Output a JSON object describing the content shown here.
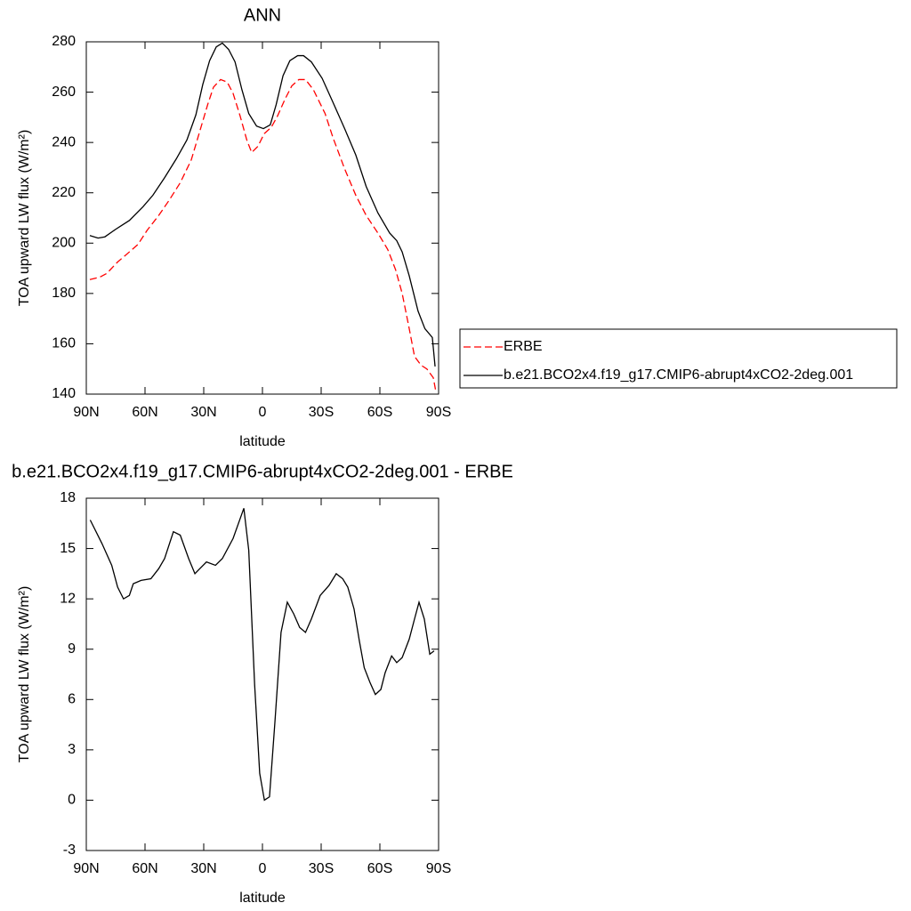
{
  "chart_data": [
    {
      "type": "line",
      "title": "ANN",
      "xlabel": "latitude",
      "ylabel": "TOA upward LW flux (W/m²)",
      "xlim": [
        90,
        -90
      ],
      "ylim": [
        140,
        280
      ],
      "xticks": [
        {
          "value": 90,
          "label": "90N"
        },
        {
          "value": 60,
          "label": "60N"
        },
        {
          "value": 30,
          "label": "30N"
        },
        0,
        {
          "value": -30,
          "label": "30S"
        },
        {
          "value": -60,
          "label": "60S"
        },
        {
          "value": -90,
          "label": "90S"
        }
      ],
      "yticks": [
        140,
        160,
        180,
        200,
        220,
        240,
        260,
        280
      ],
      "series": [
        {
          "name": "ERBE",
          "color": "#ff0000",
          "dashed": true,
          "x": [
            88.2,
            83,
            79.5,
            74,
            68,
            63.6,
            59,
            53,
            47.7,
            42,
            36.4,
            32,
            28,
            25,
            21.4,
            18,
            15,
            11.4,
            8,
            5.5,
            2.3,
            -0.9,
            -4.5,
            -7.7,
            -11.4,
            -15,
            -18.6,
            -22,
            -26,
            -32,
            -36,
            -42,
            -47.7,
            -53,
            -59,
            -64,
            -68,
            -71.4,
            -75,
            -77.7,
            -81,
            -84,
            -87.3,
            -88.6
          ],
          "values": [
            185.5,
            186.5,
            188,
            192.5,
            196.5,
            199.5,
            205,
            211,
            217,
            224,
            233,
            244.5,
            255,
            262,
            265,
            264,
            259.5,
            250.5,
            241,
            236,
            238.5,
            243.5,
            246,
            250.5,
            257,
            262.5,
            265,
            265,
            261,
            251.5,
            242,
            229.5,
            219,
            211,
            204,
            197.5,
            189.5,
            180,
            166,
            155,
            151.5,
            150,
            146.5,
            141
          ]
        },
        {
          "name": "b.e21.BCO2x4.f19_g17.CMIP6-abrupt4xCO2-2deg.001",
          "color": "#000000",
          "dashed": false,
          "x": [
            88.2,
            84,
            80.5,
            75,
            68,
            61,
            56,
            50,
            44,
            38.6,
            34,
            30.5,
            27,
            23.6,
            20.5,
            17.3,
            14,
            10.5,
            7,
            3,
            -0.5,
            -4,
            -7,
            -10.5,
            -14,
            -18,
            -21,
            -25,
            -30.5,
            -36,
            -42,
            -47.7,
            -53,
            -59,
            -65,
            -68.6,
            -71.4,
            -75,
            -79.5,
            -83,
            -86.8,
            -88.2
          ],
          "values": [
            203,
            202,
            202.5,
            205.5,
            209,
            214.5,
            219,
            226,
            233.5,
            241,
            251,
            263,
            272.5,
            278,
            279.5,
            277,
            272,
            261,
            251.5,
            246.5,
            245.5,
            247,
            255,
            266.5,
            272.5,
            274.5,
            274.5,
            272,
            265.5,
            256,
            245.5,
            235,
            222.5,
            212,
            204,
            201,
            196.5,
            187,
            173,
            166,
            162.5,
            151
          ]
        }
      ]
    },
    {
      "type": "line",
      "title": "b.e21.BCO2x4.f19_g17.CMIP6-abrupt4xCO2-2deg.001 - ERBE",
      "xlabel": "latitude",
      "ylabel": "TOA upward LW flux (W/m²)",
      "xlim": [
        90,
        -90
      ],
      "ylim": [
        -3,
        18
      ],
      "xticks": [
        {
          "value": 90,
          "label": "90N"
        },
        {
          "value": 60,
          "label": "60N"
        },
        {
          "value": 30,
          "label": "30N"
        },
        0,
        {
          "value": -30,
          "label": "30S"
        },
        {
          "value": -60,
          "label": "60S"
        },
        {
          "value": -90,
          "label": "90S"
        }
      ],
      "yticks": [
        -3,
        0,
        3,
        6,
        9,
        12,
        15,
        18
      ],
      "series": [
        {
          "color": "#000000",
          "dashed": false,
          "x": [
            88,
            82,
            77,
            74,
            71,
            68,
            66,
            62,
            57,
            53,
            50,
            45.5,
            42,
            37.7,
            34.5,
            32,
            28.6,
            24,
            20.5,
            15,
            9.5,
            7,
            4,
            1.4,
            -1,
            -3.6,
            -6.4,
            -9.5,
            -12.7,
            -16,
            -19,
            -22,
            -25,
            -29.5,
            -34,
            -37.7,
            -41,
            -43.6,
            -46.8,
            -49.5,
            -52,
            -55,
            -57.7,
            -60.5,
            -62.7,
            -66,
            -68.6,
            -71.4,
            -75,
            -77.7,
            -80,
            -82.7,
            -85.5,
            -87.7
          ],
          "values": [
            16.7,
            15.3,
            14.0,
            12.7,
            12.0,
            12.2,
            12.9,
            13.1,
            13.2,
            13.8,
            14.4,
            16.0,
            15.8,
            14.4,
            13.5,
            13.8,
            14.2,
            14.0,
            14.4,
            15.6,
            17.4,
            14.9,
            6.9,
            1.6,
            0,
            0.2,
            4.7,
            10.0,
            11.8,
            11.1,
            10.3,
            10.0,
            10.8,
            12.2,
            12.8,
            13.5,
            13.2,
            12.7,
            11.4,
            9.5,
            7.9,
            7.0,
            6.3,
            6.6,
            7.6,
            8.6,
            8.2,
            8.5,
            9.6,
            10.8,
            11.8,
            10.8,
            8.7,
            8.9
          ]
        }
      ]
    }
  ]
}
